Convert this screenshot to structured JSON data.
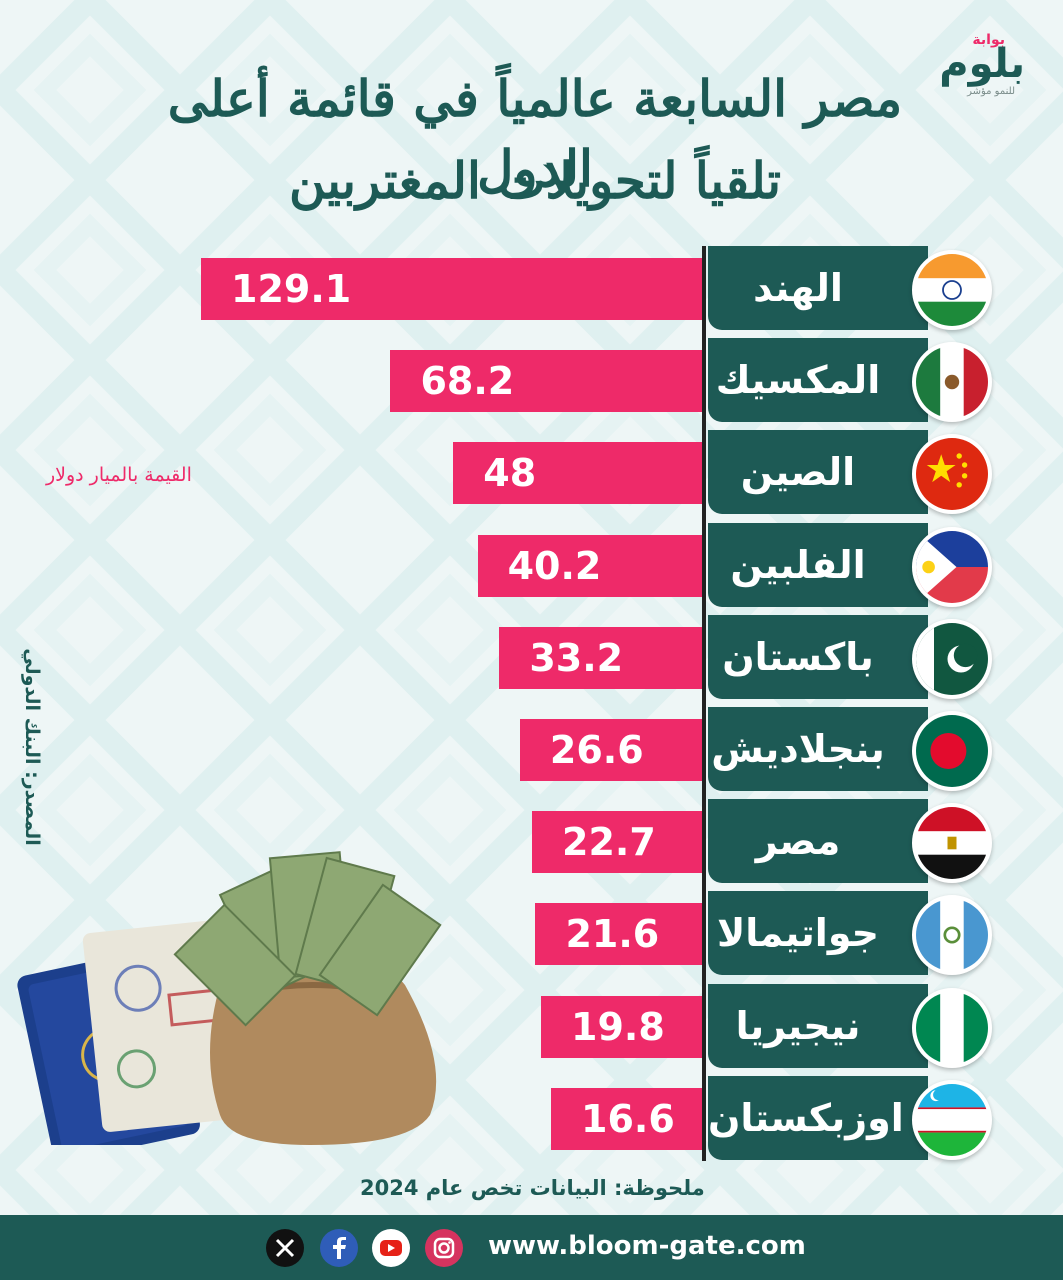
{
  "brand": {
    "logo_top": "بوابة",
    "logo_main": "بلوم",
    "logo_sub": "للنمو مؤشر"
  },
  "title": {
    "line1": "مصر السابعة عالمياً في قائمة أعلى الدول",
    "line2": "تلقياً لتحويلات المغتربين"
  },
  "unit_label": "القيمة بالميار دولار",
  "source_label": "المصدر: البنك الدولي",
  "note": "ملحوظة: البيانات تخص عام 2024",
  "footer": {
    "url": "www.bloom-gate.com",
    "icons": [
      "x-icon",
      "facebook-icon",
      "youtube-icon",
      "instagram-icon"
    ]
  },
  "colors": {
    "accent": "#ee2a69",
    "primary": "#1d5a55"
  },
  "chart_data": {
    "type": "bar",
    "orientation": "horizontal",
    "categories": [
      "الهند",
      "المكسيك",
      "الصين",
      "الفلبين",
      "باكستان",
      "بنجلاديش",
      "مصر",
      "جواتيمالا",
      "نيجيريا",
      "اوزبكستان"
    ],
    "values": [
      129.1,
      68.2,
      48,
      40.2,
      33.2,
      26.6,
      22.7,
      21.6,
      19.8,
      16.6
    ],
    "value_labels": [
      "129.1",
      "68.2",
      "48",
      "40.2",
      "33.2",
      "26.6",
      "22.7",
      "21.6",
      "19.8",
      "16.6"
    ],
    "flags": [
      "india-flag-icon",
      "mexico-flag-icon",
      "china-flag-icon",
      "philippines-flag-icon",
      "pakistan-flag-icon",
      "bangladesh-flag-icon",
      "egypt-flag-icon",
      "guatemala-flag-icon",
      "nigeria-flag-icon",
      "uzbekistan-flag-icon"
    ],
    "xlabel": "",
    "ylabel": "",
    "grid": false
  }
}
